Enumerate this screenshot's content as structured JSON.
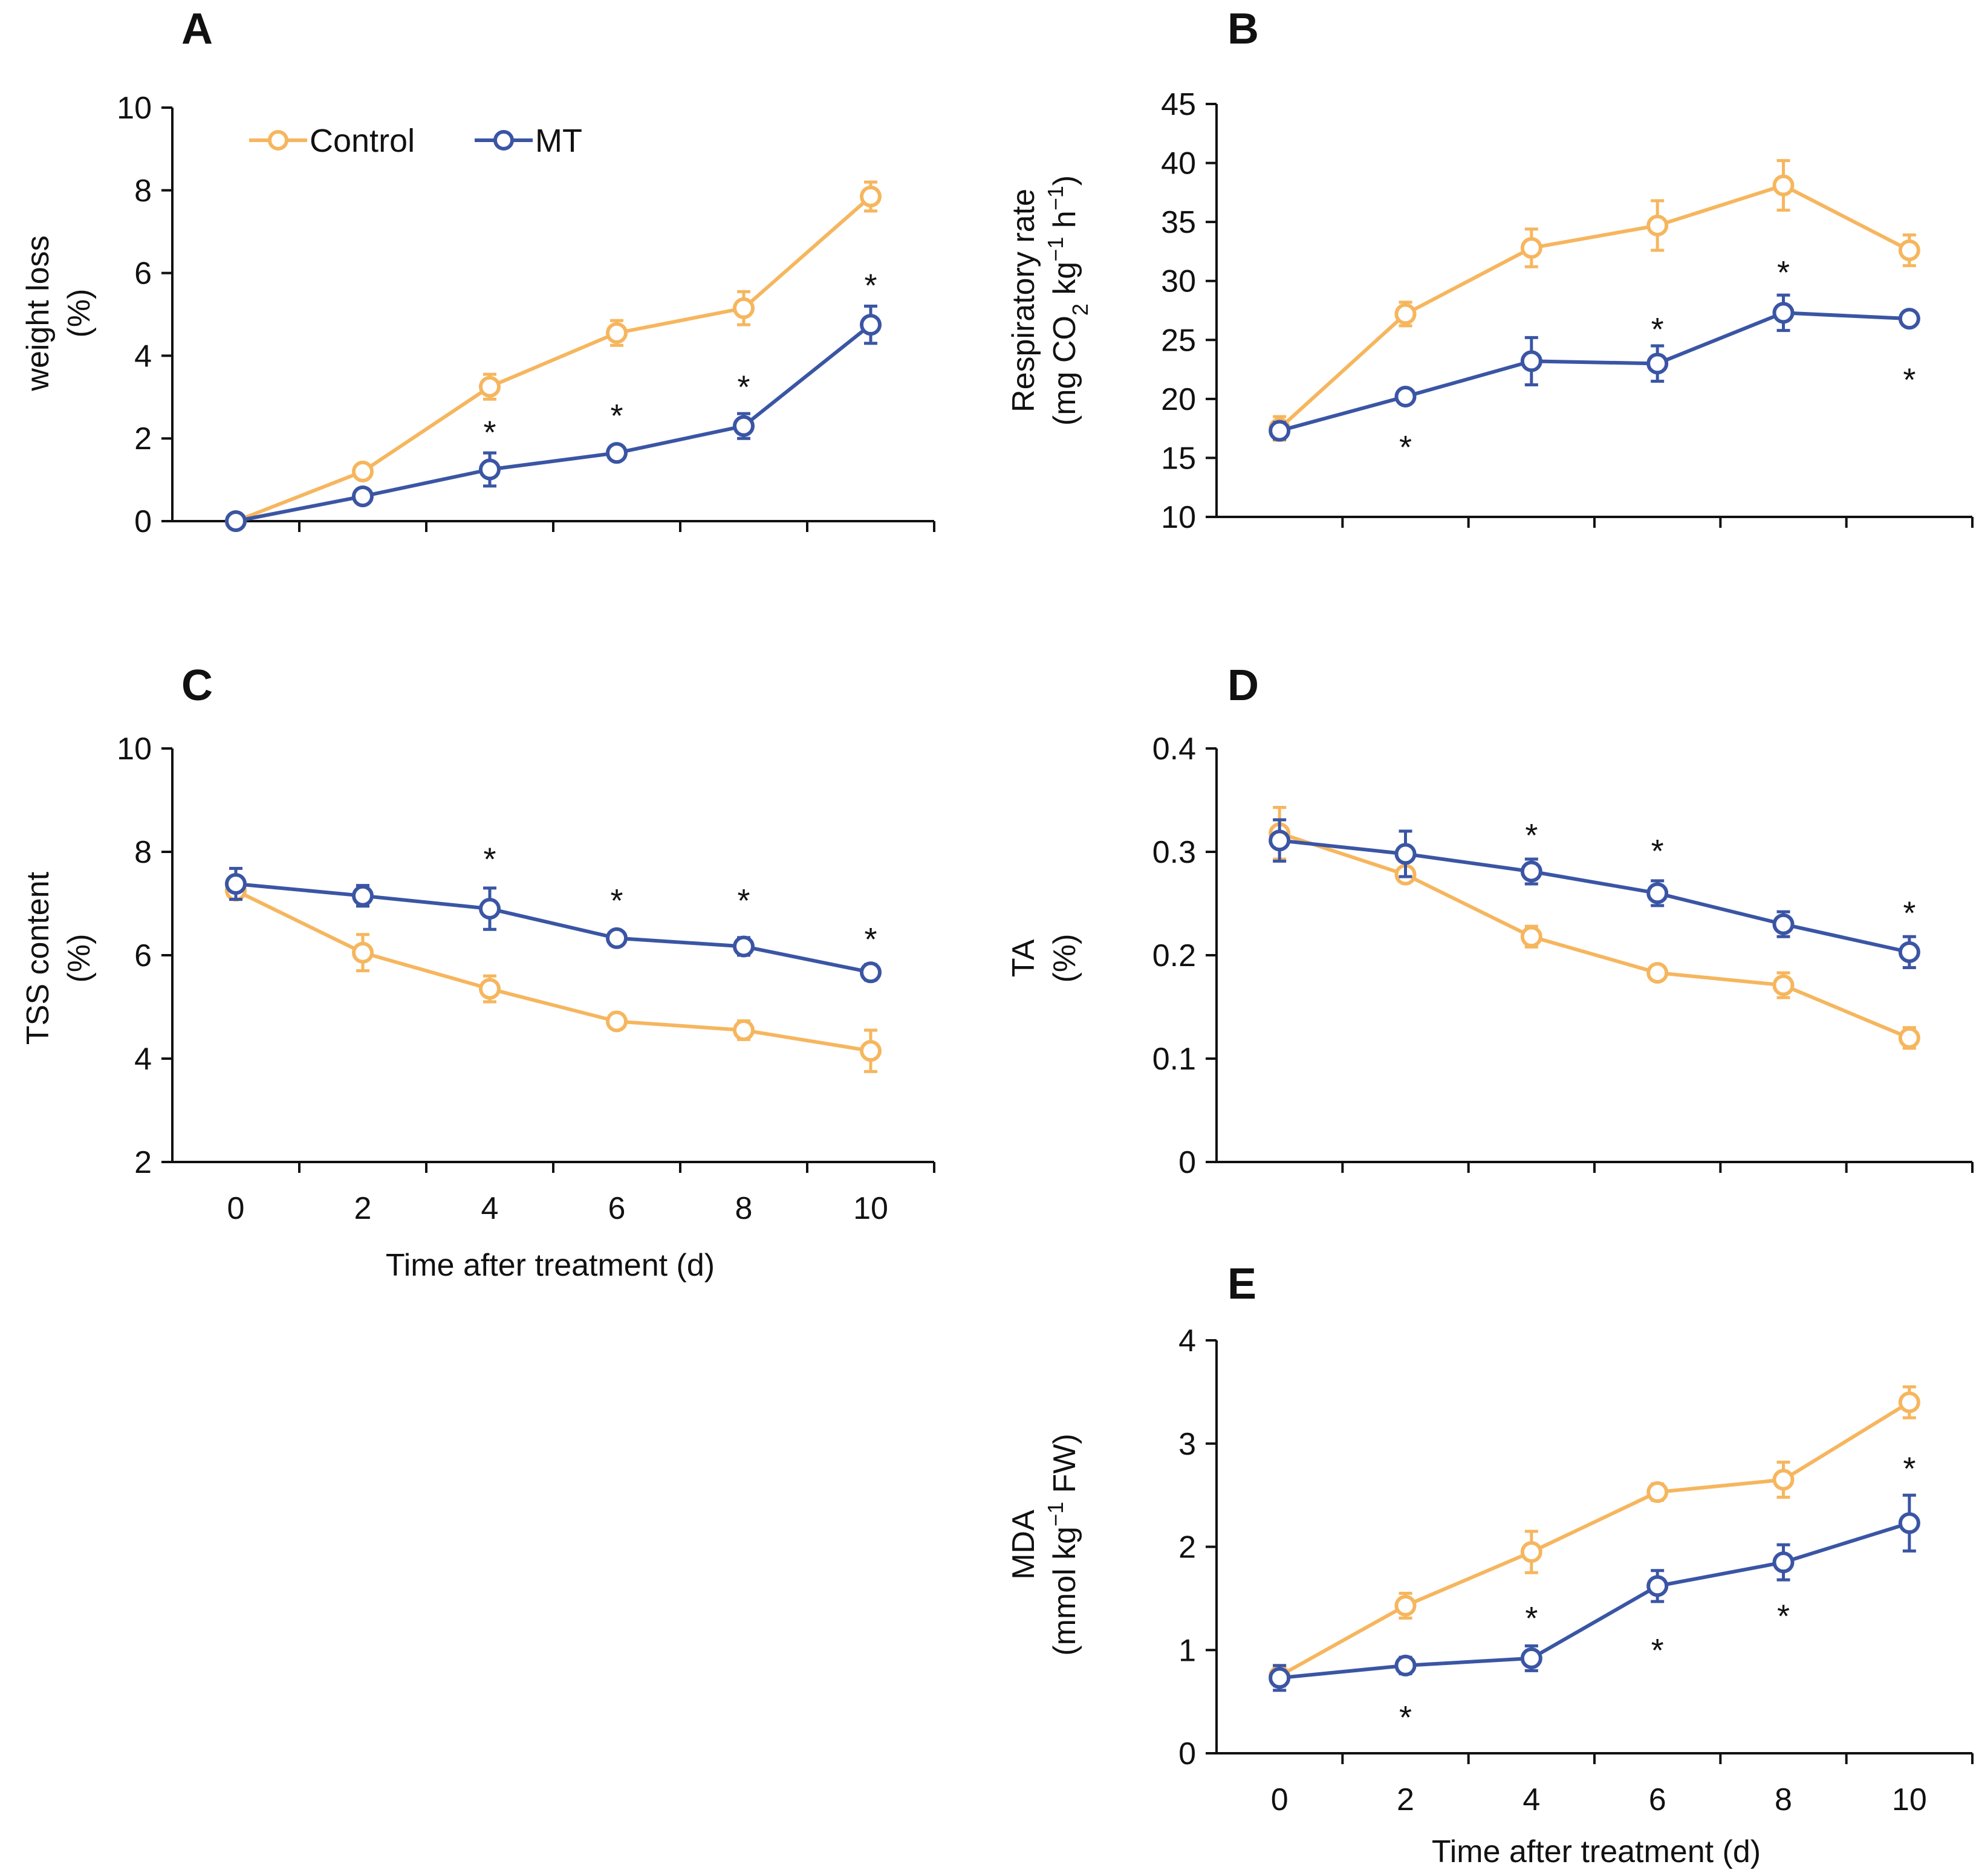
{
  "colors": {
    "control": "#F6B65E",
    "mt": "#3A55A4",
    "axis": "#111111"
  },
  "legend": [
    {
      "series": "control",
      "label": "Control"
    },
    {
      "series": "mt",
      "label": "MT"
    }
  ],
  "chart_data": [
    {
      "id": "A",
      "type": "line",
      "panel_label": "A",
      "x": [
        0,
        2,
        4,
        6,
        8,
        10
      ],
      "ylabel_lines": [
        "weight loss",
        "(%)"
      ],
      "ylim": [
        0,
        10
      ],
      "yticks": [
        0,
        2,
        4,
        6,
        8,
        10
      ],
      "xlabel": "",
      "show_xticks": false,
      "series": [
        {
          "name": "Control",
          "key": "control",
          "values": [
            0,
            1.2,
            3.25,
            4.55,
            5.15,
            7.85
          ],
          "errors": [
            0,
            0.1,
            0.3,
            0.3,
            0.4,
            0.35
          ]
        },
        {
          "name": "MT",
          "key": "mt",
          "values": [
            0,
            0.6,
            1.25,
            1.65,
            2.3,
            4.75
          ],
          "errors": [
            0,
            0.1,
            0.4,
            0.15,
            0.3,
            0.45
          ]
        }
      ],
      "annotations": [
        {
          "x": 4,
          "y": 2.2,
          "text": "*"
        },
        {
          "x": 6,
          "y": 2.6,
          "text": "*"
        },
        {
          "x": 8,
          "y": 3.3,
          "text": "*"
        },
        {
          "x": 10,
          "y": 5.75,
          "text": "*"
        }
      ]
    },
    {
      "id": "B",
      "type": "line",
      "panel_label": "B",
      "x": [
        0,
        2,
        4,
        6,
        8,
        10
      ],
      "ylabel_lines": [
        "Respiratory rate",
        "(mg CO2 kg-1 h-1)"
      ],
      "ylim": [
        10,
        45
      ],
      "yticks": [
        10,
        15,
        20,
        25,
        30,
        35,
        40,
        45
      ],
      "xlabel": "",
      "show_xticks": false,
      "series": [
        {
          "name": "Control",
          "key": "control",
          "values": [
            17.5,
            27.2,
            32.8,
            34.7,
            38.1,
            32.6
          ],
          "errors": [
            1.0,
            1.0,
            1.6,
            2.1,
            2.1,
            1.3
          ]
        },
        {
          "name": "MT",
          "key": "mt",
          "values": [
            17.3,
            20.2,
            23.2,
            23.0,
            27.3,
            26.8
          ],
          "errors": [
            0.7,
            0.6,
            2.0,
            1.5,
            1.5,
            0.5
          ]
        }
      ],
      "annotations": [
        {
          "x": 2,
          "y": 16.1,
          "text": "*"
        },
        {
          "x": 6,
          "y": 26.1,
          "text": "*"
        },
        {
          "x": 8,
          "y": 30.9,
          "text": "*"
        },
        {
          "x": 10,
          "y": 21.8,
          "text": "*"
        }
      ]
    },
    {
      "id": "C",
      "type": "line",
      "panel_label": "C",
      "x": [
        0,
        2,
        4,
        6,
        8,
        10
      ],
      "ylabel_lines": [
        "TSS content",
        "(%)"
      ],
      "ylim": [
        2,
        10
      ],
      "yticks": [
        2,
        4,
        6,
        8,
        10
      ],
      "xlabel": "Time after treatment (d)",
      "show_xticks": true,
      "series": [
        {
          "name": "Control",
          "key": "control",
          "values": [
            7.25,
            6.05,
            5.35,
            4.72,
            4.55,
            4.15
          ],
          "errors": [
            0.15,
            0.35,
            0.25,
            0.1,
            0.18,
            0.4
          ]
        },
        {
          "name": "MT",
          "key": "mt",
          "values": [
            7.38,
            7.15,
            6.9,
            6.33,
            6.17,
            5.67
          ],
          "errors": [
            0.3,
            0.2,
            0.4,
            0.1,
            0.17,
            0.15
          ]
        }
      ],
      "annotations": [
        {
          "x": 4,
          "y": 7.9,
          "text": "*"
        },
        {
          "x": 6,
          "y": 7.1,
          "text": "*"
        },
        {
          "x": 8,
          "y": 7.1,
          "text": "*"
        },
        {
          "x": 10,
          "y": 6.35,
          "text": "*"
        }
      ]
    },
    {
      "id": "D",
      "type": "line",
      "panel_label": "D",
      "x": [
        0,
        2,
        4,
        6,
        8,
        10
      ],
      "ylabel_lines": [
        "TA",
        "(%)"
      ],
      "ylim": [
        0,
        0.4
      ],
      "yticks": [
        0,
        0.1,
        0.2,
        0.3,
        0.4
      ],
      "xlabel": "",
      "show_xticks": false,
      "series": [
        {
          "name": "Control",
          "key": "control",
          "values": [
            0.318,
            0.278,
            0.218,
            0.183,
            0.171,
            0.12
          ],
          "errors": [
            0.025,
            0.006,
            0.01,
            0.006,
            0.012,
            0.01
          ]
        },
        {
          "name": "MT",
          "key": "mt",
          "values": [
            0.311,
            0.298,
            0.281,
            0.26,
            0.23,
            0.203
          ],
          "errors": [
            0.02,
            0.022,
            0.012,
            0.012,
            0.012,
            0.015
          ]
        }
      ],
      "annotations": [
        {
          "x": 4,
          "y": 0.318,
          "text": "*"
        },
        {
          "x": 6,
          "y": 0.303,
          "text": "*"
        },
        {
          "x": 10,
          "y": 0.243,
          "text": "*"
        }
      ]
    },
    {
      "id": "E",
      "type": "line",
      "panel_label": "E",
      "x": [
        0,
        2,
        4,
        6,
        8,
        10
      ],
      "ylabel_lines": [
        "MDA",
        "(mmol kg-1 FW)"
      ],
      "ylim": [
        0,
        4
      ],
      "yticks": [
        0,
        1,
        2,
        3,
        4
      ],
      "xlabel": "Time after treatment (d)",
      "show_xticks": true,
      "series": [
        {
          "name": "Control",
          "key": "control",
          "values": [
            0.75,
            1.43,
            1.95,
            2.53,
            2.65,
            3.4
          ],
          "errors": [
            0.1,
            0.12,
            0.2,
            0.08,
            0.17,
            0.15
          ]
        },
        {
          "name": "MT",
          "key": "mt",
          "values": [
            0.73,
            0.85,
            0.92,
            1.62,
            1.85,
            2.23
          ],
          "errors": [
            0.12,
            0.08,
            0.12,
            0.15,
            0.17,
            0.27
          ]
        }
      ],
      "annotations": [
        {
          "x": 2,
          "y": 0.37,
          "text": "*"
        },
        {
          "x": 4,
          "y": 1.33,
          "text": "*"
        },
        {
          "x": 6,
          "y": 1.02,
          "text": "*"
        },
        {
          "x": 8,
          "y": 1.35,
          "text": "*"
        },
        {
          "x": 10,
          "y": 2.78,
          "text": "*"
        }
      ]
    }
  ]
}
